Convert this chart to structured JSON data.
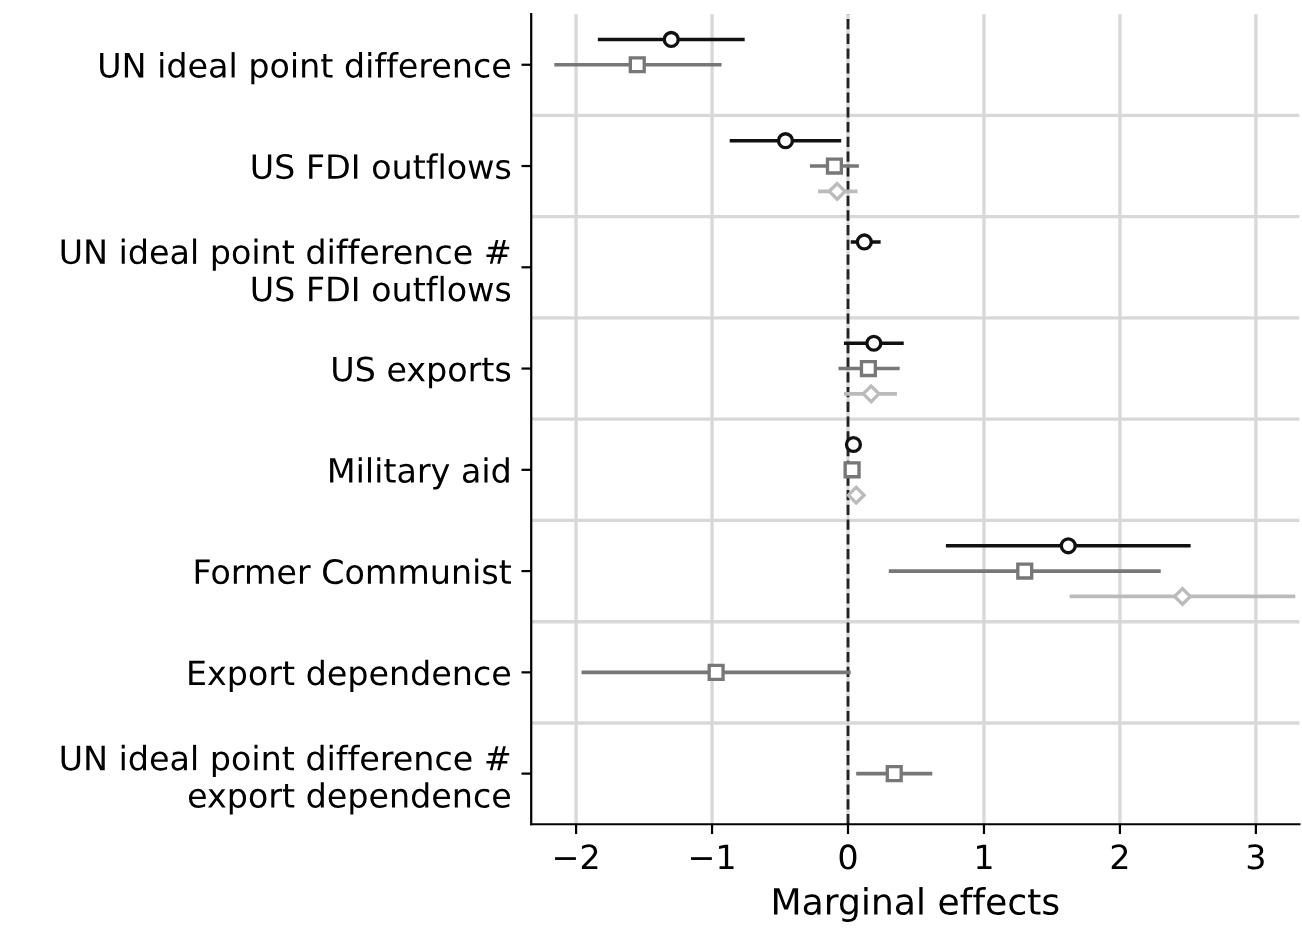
{
  "chart_data": {
    "type": "scatter",
    "orientation": "horizontal",
    "xlabel": "Marginal effects",
    "categories": [
      "UN ideal point difference",
      "US FDI outflows",
      "UN ideal point difference #\nUS FDI outflows",
      "US exports",
      "Military aid",
      "Former Communist",
      "Export dependence",
      "UN ideal point difference #\nexport dependence"
    ],
    "xlim": [
      -2.33,
      3.32
    ],
    "xticks": [
      {
        "value": -2,
        "label": "−2"
      },
      {
        "value": -1,
        "label": "−1"
      },
      0,
      1,
      2,
      3
    ],
    "grid": true,
    "legend": false,
    "ref_lines": [
      {
        "axis": "x",
        "value": 0,
        "color": "#222222",
        "line_style": "dashed"
      }
    ],
    "series": [
      {
        "color": "#111111",
        "marker": "circle",
        "values": [
          -1.3,
          -0.46,
          0.12,
          0.19,
          0.04,
          1.62,
          null,
          null
        ],
        "errors": [
          [
            -1.84,
            -0.76
          ],
          [
            -0.87,
            -0.05
          ],
          [
            0.02,
            0.24
          ],
          [
            -0.03,
            0.41
          ],
          [
            0.03,
            0.05
          ],
          [
            0.72,
            2.52
          ],
          null,
          null
        ]
      },
      {
        "color": "#777777",
        "marker": "square",
        "values": [
          -1.55,
          -0.1,
          null,
          0.15,
          0.03,
          1.3,
          -0.97,
          0.34
        ],
        "errors": [
          [
            -2.16,
            -0.93
          ],
          [
            -0.28,
            0.08
          ],
          null,
          [
            -0.07,
            0.38
          ],
          null,
          [
            0.3,
            2.3
          ],
          [
            -1.96,
            0.02
          ],
          [
            0.06,
            0.62
          ]
        ]
      },
      {
        "color": "#bbbbbb",
        "marker": "diamond",
        "values": [
          null,
          -0.08,
          null,
          0.17,
          0.06,
          2.46,
          null,
          null
        ],
        "errors": [
          null,
          [
            -0.22,
            0.07
          ],
          null,
          [
            -0.03,
            0.36
          ],
          null,
          [
            1.63,
            3.29
          ],
          null,
          null
        ]
      }
    ]
  }
}
